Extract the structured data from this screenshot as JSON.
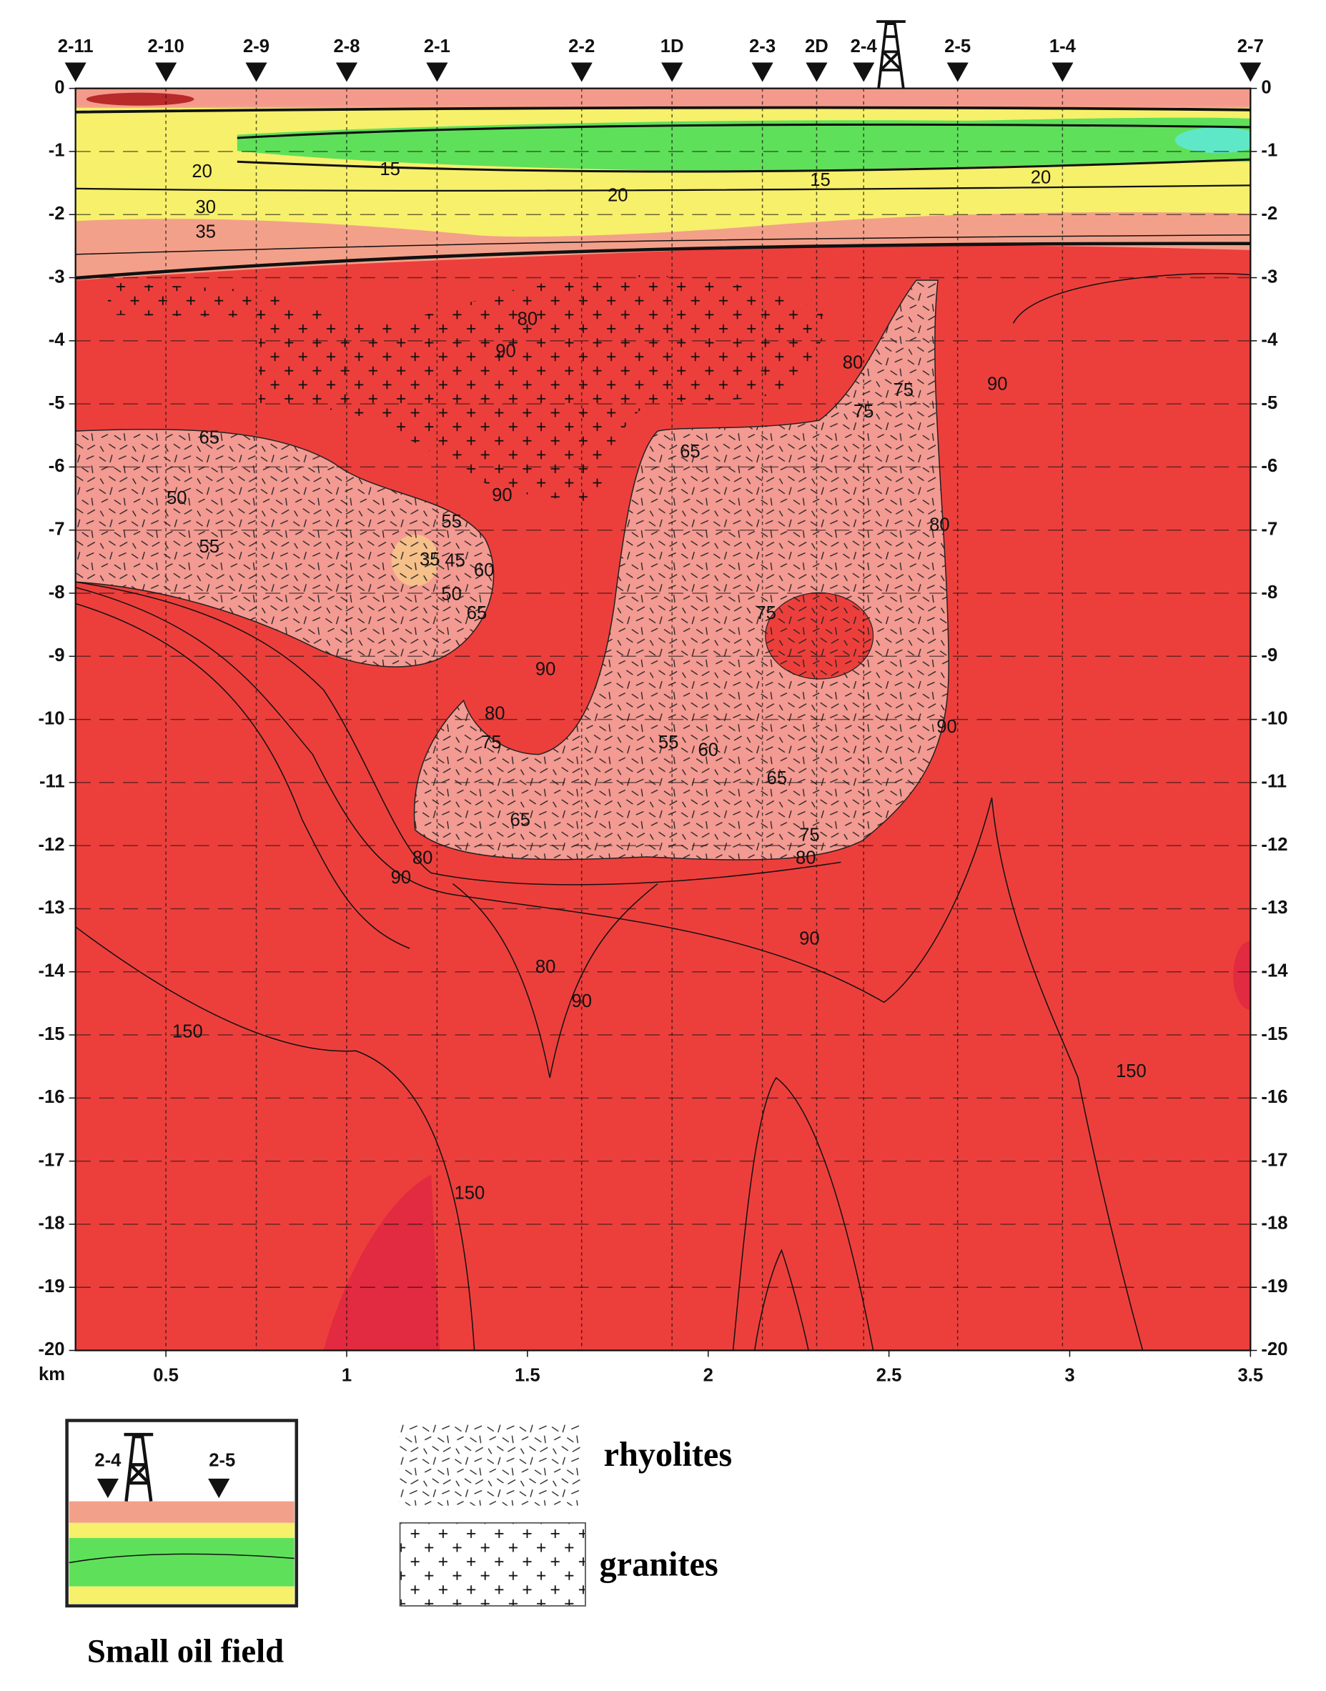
{
  "chart_data": {
    "type": "contour",
    "xlim": [
      0.25,
      3.5
    ],
    "ylim": [
      -20,
      0
    ],
    "xticks": [
      0.5,
      1,
      1.5,
      2,
      2.5,
      3,
      3.5
    ],
    "yticks": [
      0,
      -1,
      -2,
      -3,
      -4,
      -5,
      -6,
      -7,
      -8,
      -9,
      -10,
      -11,
      -12,
      -13,
      -14,
      -15,
      -16,
      -17,
      -18,
      -19,
      -20
    ],
    "y_axis_label": "km",
    "grid": true,
    "wells": [
      {
        "name": "2-11",
        "x": 0.25
      },
      {
        "name": "2-10",
        "x": 0.5
      },
      {
        "name": "2-9",
        "x": 0.75
      },
      {
        "name": "2-8",
        "x": 1.0
      },
      {
        "name": "2-1",
        "x": 1.25
      },
      {
        "name": "2-2",
        "x": 1.65
      },
      {
        "name": "1D",
        "x": 1.9
      },
      {
        "name": "2-3",
        "x": 2.15
      },
      {
        "name": "2D",
        "x": 2.3
      },
      {
        "name": "2-4",
        "x": 2.43
      },
      {
        "name": "2-5",
        "x": 2.69
      },
      {
        "name": "1-4",
        "x": 2.98
      },
      {
        "name": "2-7",
        "x": 3.5
      }
    ],
    "contour_labels": [
      {
        "value": 20,
        "x": 0.6,
        "y": -1.33
      },
      {
        "value": 15,
        "x": 1.12,
        "y": -1.3
      },
      {
        "value": 20,
        "x": 1.75,
        "y": -1.71
      },
      {
        "value": 15,
        "x": 2.31,
        "y": -1.47
      },
      {
        "value": 20,
        "x": 2.92,
        "y": -1.43
      },
      {
        "value": 30,
        "x": 0.61,
        "y": -1.9
      },
      {
        "value": 35,
        "x": 0.61,
        "y": -2.29
      },
      {
        "value": 80,
        "x": 1.5,
        "y": -3.67
      },
      {
        "value": 90,
        "x": 1.44,
        "y": -4.18
      },
      {
        "value": 80,
        "x": 2.4,
        "y": -4.36
      },
      {
        "value": 75,
        "x": 2.43,
        "y": -5.14
      },
      {
        "value": 75,
        "x": 2.54,
        "y": -4.8
      },
      {
        "value": 90,
        "x": 2.8,
        "y": -4.7
      },
      {
        "value": 65,
        "x": 0.62,
        "y": -5.55
      },
      {
        "value": 65,
        "x": 1.95,
        "y": -5.77
      },
      {
        "value": 90,
        "x": 1.43,
        "y": -6.46
      },
      {
        "value": 50,
        "x": 0.53,
        "y": -6.51
      },
      {
        "value": 55,
        "x": 0.62,
        "y": -7.28
      },
      {
        "value": 55,
        "x": 1.29,
        "y": -6.88
      },
      {
        "value": 35,
        "x": 1.23,
        "y": -7.48
      },
      {
        "value": 45,
        "x": 1.3,
        "y": -7.5
      },
      {
        "value": 60,
        "x": 1.38,
        "y": -7.65
      },
      {
        "value": 50,
        "x": 1.29,
        "y": -8.03
      },
      {
        "value": 65,
        "x": 1.36,
        "y": -8.33
      },
      {
        "value": 80,
        "x": 2.64,
        "y": -6.93
      },
      {
        "value": 75,
        "x": 2.16,
        "y": -8.33
      },
      {
        "value": 90,
        "x": 1.55,
        "y": -9.22
      },
      {
        "value": 80,
        "x": 1.41,
        "y": -9.92
      },
      {
        "value": 75,
        "x": 1.4,
        "y": -10.38
      },
      {
        "value": 55,
        "x": 1.89,
        "y": -10.38
      },
      {
        "value": 60,
        "x": 2.0,
        "y": -10.5
      },
      {
        "value": 65,
        "x": 2.19,
        "y": -10.95
      },
      {
        "value": 90,
        "x": 2.66,
        "y": -10.13
      },
      {
        "value": 65,
        "x": 1.48,
        "y": -11.61
      },
      {
        "value": 75,
        "x": 2.28,
        "y": -11.85
      },
      {
        "value": 80,
        "x": 2.27,
        "y": -12.21
      },
      {
        "value": 80,
        "x": 1.21,
        "y": -12.21
      },
      {
        "value": 90,
        "x": 1.15,
        "y": -12.52
      },
      {
        "value": 90,
        "x": 2.28,
        "y": -13.49
      },
      {
        "value": 80,
        "x": 1.55,
        "y": -13.94
      },
      {
        "value": 90,
        "x": 1.65,
        "y": -14.48
      },
      {
        "value": 150,
        "x": 0.56,
        "y": -14.96
      },
      {
        "value": 150,
        "x": 3.17,
        "y": -15.59
      },
      {
        "value": 150,
        "x": 1.34,
        "y": -17.52
      }
    ],
    "legend": [
      "rhyolites",
      "granites"
    ],
    "inset": {
      "title": "Small oil field",
      "wells": [
        "2-4",
        "2-5"
      ]
    }
  }
}
